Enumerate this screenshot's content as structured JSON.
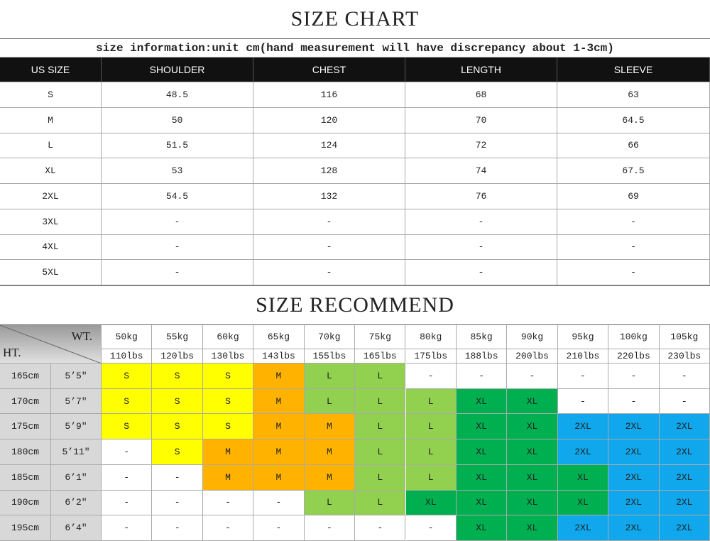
{
  "size_chart": {
    "title": "SIZE CHART",
    "subtitle": "size information:unit cm(hand measurement will have discrepancy about 1-3cm)",
    "columns": [
      "US SIZE",
      "SHOULDER",
      "CHEST",
      "LENGTH",
      "SLEEVE"
    ],
    "rows": [
      [
        "S",
        48.5,
        116,
        68,
        63
      ],
      [
        "M",
        50,
        120,
        70,
        64.5
      ],
      [
        "L",
        51.5,
        124,
        72,
        66
      ],
      [
        "XL",
        53,
        128,
        74,
        67.5
      ],
      [
        "2XL",
        54.5,
        132,
        76,
        69
      ],
      [
        "3XL",
        "-",
        "-",
        "-",
        "-"
      ],
      [
        "4XL",
        "-",
        "-",
        "-",
        "-"
      ],
      [
        "5XL",
        "-",
        "-",
        "-",
        "-"
      ]
    ]
  },
  "size_recommend": {
    "title": "SIZE RECOMMEND",
    "weight_label": "WT.",
    "height_label": "HT.",
    "weights_kg": [
      "50kg",
      "55kg",
      "60kg",
      "65kg",
      "70kg",
      "75kg",
      "80kg",
      "85kg",
      "90kg",
      "95kg",
      "100kg",
      "105kg"
    ],
    "weights_lbs": [
      "110lbs",
      "120lbs",
      "130lbs",
      "143lbs",
      "155lbs",
      "165lbs",
      "175lbs",
      "188lbs",
      "200lbs",
      "210lbs",
      "220lbs",
      "230lbs"
    ],
    "rows": [
      {
        "cm": "165cm",
        "ft": "5’5″",
        "sizes": [
          "S",
          "S",
          "S",
          "M",
          "L",
          "L",
          "-",
          "-",
          "-",
          "-",
          "-",
          "-"
        ]
      },
      {
        "cm": "170cm",
        "ft": "5’7″",
        "sizes": [
          "S",
          "S",
          "S",
          "M",
          "L",
          "L",
          "L",
          "XL",
          "XL",
          "-",
          "-",
          "-"
        ]
      },
      {
        "cm": "175cm",
        "ft": "5’9″",
        "sizes": [
          "S",
          "S",
          "S",
          "M",
          "M",
          "L",
          "L",
          "XL",
          "XL",
          "2XL",
          "2XL",
          "2XL"
        ]
      },
      {
        "cm": "180cm",
        "ft": "5’11″",
        "sizes": [
          "-",
          "S",
          "M",
          "M",
          "M",
          "L",
          "L",
          "XL",
          "XL",
          "2XL",
          "2XL",
          "2XL"
        ]
      },
      {
        "cm": "185cm",
        "ft": "6’1″",
        "sizes": [
          "-",
          "-",
          "M",
          "M",
          "M",
          "L",
          "L",
          "XL",
          "XL",
          "XL",
          "2XL",
          "2XL"
        ]
      },
      {
        "cm": "190cm",
        "ft": "6’2″",
        "sizes": [
          "-",
          "-",
          "-",
          "-",
          "L",
          "L",
          "XL",
          "XL",
          "XL",
          "XL",
          "2XL",
          "2XL"
        ]
      },
      {
        "cm": "195cm",
        "ft": "6’4″",
        "sizes": [
          "-",
          "-",
          "-",
          "-",
          "-",
          "-",
          "-",
          "XL",
          "XL",
          "2XL",
          "2XL",
          "2XL"
        ]
      }
    ],
    "cell_colors": {
      "S": "#ffff00",
      "M": "#ffb300",
      "L": "#92d050",
      "XL": "#00b050",
      "2XL": "#11a7ec"
    }
  }
}
